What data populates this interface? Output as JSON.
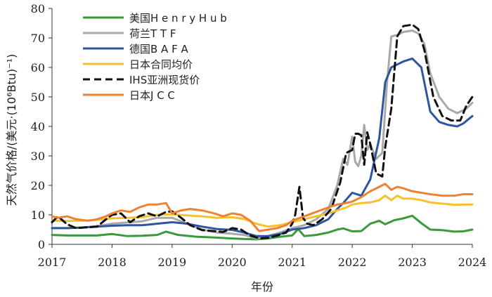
{
  "chart_data": {
    "type": "line",
    "title": "",
    "xlabel": "年份",
    "ylabel": "天然气价格/(美元·(10⁶Btu)⁻¹)",
    "xlim": [
      2017,
      2024
    ],
    "ylim": [
      0,
      80
    ],
    "xticks": [
      2017,
      2018,
      2019,
      2020,
      2021,
      2022,
      2023,
      2024
    ],
    "yticks": [
      0,
      10,
      20,
      30,
      40,
      50,
      60,
      70,
      80
    ],
    "xtick_labels": [
      "2017",
      "2018",
      "2019",
      "2020",
      "2021",
      "2022",
      "2023",
      "2024"
    ],
    "ytick_labels": [
      "0",
      "10",
      "20",
      "30",
      "40",
      "50",
      "60",
      "70",
      "80"
    ],
    "grid": false,
    "legend_position": "top-left",
    "series": [
      {
        "name": "美国H e n r y  H u b",
        "color": "#3a9a3a",
        "dash": "solid",
        "x": [
          2017.0,
          2017.25,
          2017.5,
          2017.75,
          2018.0,
          2018.25,
          2018.5,
          2018.75,
          2018.9,
          2019.1,
          2019.4,
          2019.7,
          2020.0,
          2020.2,
          2020.4,
          2020.6,
          2020.8,
          2021.0,
          2021.1,
          2021.2,
          2021.4,
          2021.6,
          2021.75,
          2021.85,
          2022.0,
          2022.15,
          2022.3,
          2022.45,
          2022.55,
          2022.7,
          2022.85,
          2023.0,
          2023.15,
          2023.3,
          2023.5,
          2023.7,
          2023.85,
          2024.0
        ],
        "values": [
          3.2,
          3.0,
          3.0,
          3.0,
          3.5,
          2.8,
          2.9,
          3.2,
          4.3,
          3.2,
          2.6,
          2.3,
          2.0,
          1.8,
          1.7,
          2.0,
          2.6,
          3.0,
          5.2,
          2.8,
          3.2,
          4.0,
          5.0,
          5.4,
          4.4,
          4.5,
          7.0,
          8.0,
          6.8,
          8.2,
          8.8,
          9.7,
          7.2,
          5.0,
          4.8,
          4.3,
          4.4,
          5.0
        ]
      },
      {
        "name": "荷兰T T F",
        "color": "#a9a9a9",
        "dash": "solid",
        "x": [
          2017.0,
          2017.25,
          2017.5,
          2017.75,
          2018.0,
          2018.25,
          2018.5,
          2018.75,
          2019.0,
          2019.25,
          2019.5,
          2019.75,
          2020.0,
          2020.2,
          2020.4,
          2020.6,
          2020.8,
          2021.0,
          2021.2,
          2021.4,
          2021.6,
          2021.75,
          2021.85,
          2021.92,
          2022.0,
          2022.05,
          2022.1,
          2022.15,
          2022.2,
          2022.25,
          2022.3,
          2022.4,
          2022.5,
          2022.58,
          2022.65,
          2022.75,
          2022.85,
          2023.0,
          2023.1,
          2023.2,
          2023.3,
          2023.45,
          2023.6,
          2023.75,
          2023.9,
          2024.0
        ],
        "values": [
          5.5,
          5.5,
          5.7,
          6.2,
          7.0,
          7.4,
          7.8,
          9.0,
          9.0,
          7.0,
          5.0,
          4.0,
          3.6,
          3.2,
          2.0,
          2.8,
          4.0,
          5.5,
          6.5,
          8.5,
          12.0,
          20.0,
          29.0,
          27.0,
          36.5,
          28.0,
          26.5,
          30.0,
          40.5,
          32.0,
          34.0,
          29.0,
          31.0,
          55.0,
          70.5,
          71.0,
          72.0,
          72.5,
          71.5,
          68.0,
          58.0,
          50.0,
          46.0,
          44.5,
          46.0,
          48.0
        ]
      },
      {
        "name": "德国B A F A",
        "color": "#2f55a0",
        "dash": "solid",
        "x": [
          2017.0,
          2017.25,
          2017.5,
          2017.75,
          2018.0,
          2018.25,
          2018.5,
          2018.75,
          2019.0,
          2019.25,
          2019.5,
          2019.75,
          2020.0,
          2020.2,
          2020.4,
          2020.6,
          2020.8,
          2021.0,
          2021.2,
          2021.4,
          2021.6,
          2021.75,
          2021.85,
          2022.0,
          2022.15,
          2022.3,
          2022.45,
          2022.55,
          2022.65,
          2022.75,
          2022.85,
          2023.0,
          2023.15,
          2023.3,
          2023.45,
          2023.6,
          2023.75,
          2023.85,
          2024.0
        ],
        "values": [
          5.5,
          5.5,
          5.7,
          6.0,
          6.3,
          6.5,
          6.5,
          7.0,
          7.5,
          7.0,
          6.0,
          5.2,
          4.9,
          4.0,
          2.8,
          2.8,
          3.5,
          5.0,
          5.5,
          6.5,
          8.5,
          12.0,
          14.0,
          17.5,
          16.5,
          22.0,
          36.0,
          55.0,
          60.0,
          61.0,
          62.0,
          63.0,
          60.0,
          45.0,
          41.5,
          40.5,
          40.0,
          41.0,
          43.5
        ]
      },
      {
        "name": "日本合同均价",
        "color": "#f6c12e",
        "dash": "solid",
        "x": [
          2017.0,
          2017.25,
          2017.5,
          2017.75,
          2018.0,
          2018.25,
          2018.5,
          2018.75,
          2019.0,
          2019.25,
          2019.5,
          2019.75,
          2020.0,
          2020.2,
          2020.4,
          2020.6,
          2020.8,
          2021.0,
          2021.2,
          2021.4,
          2021.6,
          2021.75,
          2021.9,
          2022.0,
          2022.15,
          2022.3,
          2022.45,
          2022.55,
          2022.65,
          2022.75,
          2022.85,
          2023.0,
          2023.15,
          2023.3,
          2023.5,
          2023.7,
          2023.85,
          2024.0
        ],
        "values": [
          8.0,
          7.9,
          8.0,
          8.3,
          8.8,
          9.0,
          9.2,
          10.0,
          10.2,
          9.8,
          9.5,
          9.0,
          9.2,
          8.6,
          7.0,
          6.0,
          6.5,
          7.5,
          8.5,
          9.5,
          10.5,
          11.5,
          12.5,
          13.5,
          14.0,
          14.2,
          15.0,
          16.5,
          15.0,
          16.5,
          15.5,
          15.5,
          15.0,
          14.2,
          13.8,
          13.4,
          13.5,
          13.5
        ]
      },
      {
        "name": "IHS亚洲现货价",
        "color": "#111111",
        "dash": "dashed",
        "x": [
          2017.0,
          2017.1,
          2017.25,
          2017.4,
          2017.6,
          2017.75,
          2017.9,
          2018.0,
          2018.15,
          2018.3,
          2018.45,
          2018.6,
          2018.75,
          2018.9,
          2019.0,
          2019.15,
          2019.3,
          2019.5,
          2019.7,
          2019.85,
          2020.0,
          2020.15,
          2020.3,
          2020.45,
          2020.6,
          2020.75,
          2020.9,
          2021.0,
          2021.05,
          2021.12,
          2021.18,
          2021.25,
          2021.35,
          2021.5,
          2021.65,
          2021.8,
          2021.9,
          2022.0,
          2022.05,
          2022.1,
          2022.15,
          2022.2,
          2022.25,
          2022.3,
          2022.4,
          2022.5,
          2022.55,
          2022.65,
          2022.75,
          2022.85,
          2023.0,
          2023.1,
          2023.2,
          2023.35,
          2023.5,
          2023.65,
          2023.8,
          2023.9,
          2024.0
        ],
        "values": [
          7.5,
          9.5,
          6.8,
          5.5,
          5.8,
          6.0,
          8.5,
          10.0,
          10.5,
          7.5,
          9.5,
          10.5,
          9.5,
          11.0,
          11.2,
          9.0,
          6.5,
          4.8,
          4.5,
          4.2,
          5.5,
          5.0,
          3.0,
          2.0,
          2.2,
          3.0,
          4.0,
          7.0,
          10.0,
          19.5,
          9.0,
          7.0,
          6.5,
          8.5,
          12.0,
          21.0,
          31.0,
          32.0,
          37.5,
          37.5,
          37.0,
          27.0,
          38.0,
          34.0,
          24.0,
          23.0,
          33.0,
          46.0,
          70.5,
          74.0,
          74.5,
          73.0,
          66.0,
          50.0,
          43.5,
          42.0,
          42.0,
          47.0,
          50.0
        ]
      },
      {
        "name": "日本J C C",
        "color": "#ef8132",
        "dash": "solid",
        "x": [
          2017.0,
          2017.1,
          2017.25,
          2017.4,
          2017.6,
          2017.75,
          2017.9,
          2018.0,
          2018.15,
          2018.3,
          2018.45,
          2018.6,
          2018.75,
          2018.9,
          2019.0,
          2019.15,
          2019.3,
          2019.5,
          2019.7,
          2019.85,
          2020.0,
          2020.15,
          2020.3,
          2020.45,
          2020.6,
          2020.75,
          2020.9,
          2021.0,
          2021.2,
          2021.4,
          2021.6,
          2021.75,
          2021.9,
          2022.0,
          2022.15,
          2022.3,
          2022.45,
          2022.55,
          2022.65,
          2022.75,
          2022.85,
          2023.0,
          2023.15,
          2023.3,
          2023.5,
          2023.7,
          2023.85,
          2024.0
        ],
        "values": [
          9.5,
          9.0,
          9.5,
          8.5,
          8.0,
          8.5,
          9.5,
          10.5,
          11.5,
          11.0,
          12.5,
          13.5,
          13.5,
          14.0,
          10.5,
          11.5,
          12.0,
          11.5,
          10.5,
          9.5,
          10.5,
          10.0,
          8.0,
          4.5,
          5.0,
          5.5,
          6.5,
          8.0,
          9.5,
          11.0,
          12.5,
          13.5,
          14.0,
          14.5,
          16.0,
          18.0,
          19.5,
          20.5,
          18.5,
          19.5,
          19.0,
          18.0,
          17.5,
          17.0,
          16.5,
          16.5,
          17.0,
          17.0
        ]
      }
    ]
  }
}
